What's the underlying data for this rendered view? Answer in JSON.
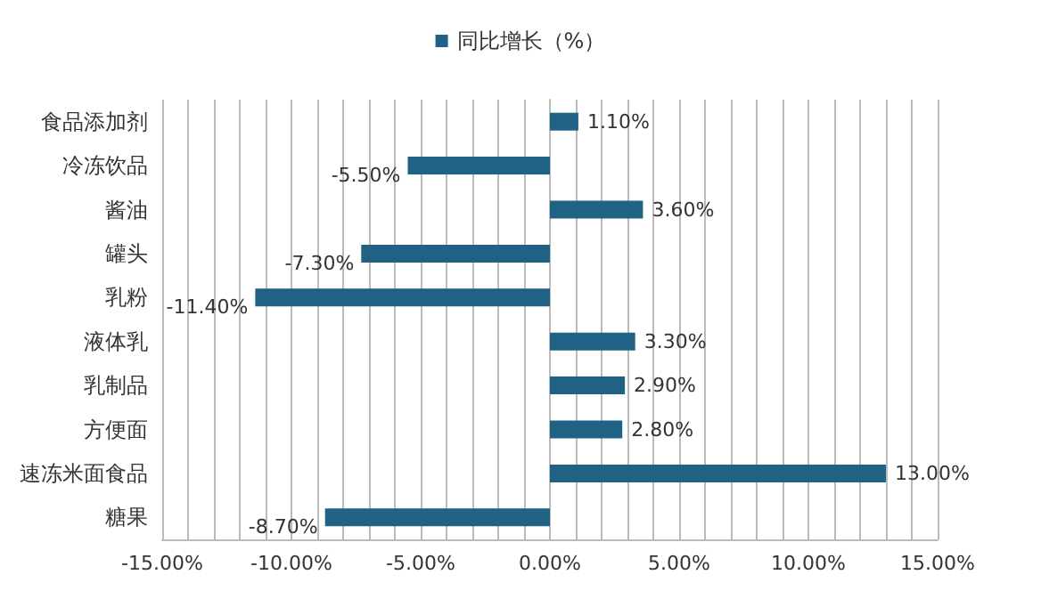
{
  "chart_data": {
    "type": "bar",
    "orientation": "horizontal",
    "legend": "top",
    "grid": "x",
    "categories": [
      "食品添加剂",
      "冷冻饮品",
      "酱油",
      "罐头",
      "乳粉",
      "液体乳",
      "乳制品",
      "方便面",
      "速冻米面食品",
      "糖果"
    ],
    "series": [
      {
        "name": "同比增长（%）",
        "color": "#1f6283",
        "values": [
          1.1,
          -5.5,
          3.6,
          -7.3,
          -11.4,
          3.3,
          2.9,
          2.8,
          13.0,
          -8.7
        ],
        "value_labels": [
          "1.10%",
          "-5.50%",
          "3.60%",
          "-7.30%",
          "-11.40%",
          "3.30%",
          "2.90%",
          "2.80%",
          "13.00%",
          "-8.70%"
        ]
      }
    ],
    "xlim": [
      -15,
      15
    ],
    "xticks": [
      {
        "value": -15,
        "label": "-15.00%"
      },
      {
        "value": -14,
        "label": null
      },
      {
        "value": -13,
        "label": null
      },
      {
        "value": -12,
        "label": null
      },
      {
        "value": -11,
        "label": null
      },
      {
        "value": -10,
        "label": "-10.00%"
      },
      {
        "value": -9,
        "label": null
      },
      {
        "value": -8,
        "label": null
      },
      {
        "value": -7,
        "label": null
      },
      {
        "value": -6,
        "label": null
      },
      {
        "value": -5,
        "label": "-5.00%"
      },
      {
        "value": -4,
        "label": null
      },
      {
        "value": -3,
        "label": null
      },
      {
        "value": -2,
        "label": null
      },
      {
        "value": -1,
        "label": null
      },
      {
        "value": 0,
        "label": "0.00%"
      },
      {
        "value": 1,
        "label": null
      },
      {
        "value": 2,
        "label": null
      },
      {
        "value": 3,
        "label": null
      },
      {
        "value": 4,
        "label": null
      },
      {
        "value": 5,
        "label": "5.00%"
      },
      {
        "value": 6,
        "label": null
      },
      {
        "value": 7,
        "label": null
      },
      {
        "value": 8,
        "label": null
      },
      {
        "value": 9,
        "label": null
      },
      {
        "value": 10,
        "label": "10.00%"
      },
      {
        "value": 11,
        "label": null
      },
      {
        "value": 12,
        "label": null
      },
      {
        "value": 13,
        "label": null
      },
      {
        "value": 14,
        "label": null
      },
      {
        "value": 15,
        "label": "15.00%"
      }
    ]
  }
}
